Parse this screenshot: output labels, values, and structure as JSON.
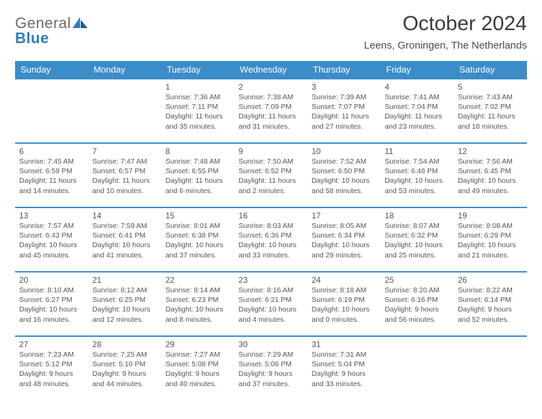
{
  "brand": {
    "word1": "General",
    "word2": "Blue",
    "accent_color": "#2f7dc0",
    "text_color": "#6a6a6a"
  },
  "title": "October 2024",
  "location": "Leens, Groningen, The Netherlands",
  "header_bg": "#3b8dca",
  "row_border_color": "#3b8dca",
  "day_headers": [
    "Sunday",
    "Monday",
    "Tuesday",
    "Wednesday",
    "Thursday",
    "Friday",
    "Saturday"
  ],
  "weeks": [
    [
      null,
      null,
      {
        "n": "1",
        "sunrise": "Sunrise: 7:36 AM",
        "sunset": "Sunset: 7:11 PM",
        "day1": "Daylight: 11 hours",
        "day2": "and 35 minutes."
      },
      {
        "n": "2",
        "sunrise": "Sunrise: 7:38 AM",
        "sunset": "Sunset: 7:09 PM",
        "day1": "Daylight: 11 hours",
        "day2": "and 31 minutes."
      },
      {
        "n": "3",
        "sunrise": "Sunrise: 7:39 AM",
        "sunset": "Sunset: 7:07 PM",
        "day1": "Daylight: 11 hours",
        "day2": "and 27 minutes."
      },
      {
        "n": "4",
        "sunrise": "Sunrise: 7:41 AM",
        "sunset": "Sunset: 7:04 PM",
        "day1": "Daylight: 11 hours",
        "day2": "and 23 minutes."
      },
      {
        "n": "5",
        "sunrise": "Sunrise: 7:43 AM",
        "sunset": "Sunset: 7:02 PM",
        "day1": "Daylight: 11 hours",
        "day2": "and 18 minutes."
      }
    ],
    [
      {
        "n": "6",
        "sunrise": "Sunrise: 7:45 AM",
        "sunset": "Sunset: 6:59 PM",
        "day1": "Daylight: 11 hours",
        "day2": "and 14 minutes."
      },
      {
        "n": "7",
        "sunrise": "Sunrise: 7:47 AM",
        "sunset": "Sunset: 6:57 PM",
        "day1": "Daylight: 11 hours",
        "day2": "and 10 minutes."
      },
      {
        "n": "8",
        "sunrise": "Sunrise: 7:48 AM",
        "sunset": "Sunset: 6:55 PM",
        "day1": "Daylight: 11 hours",
        "day2": "and 6 minutes."
      },
      {
        "n": "9",
        "sunrise": "Sunrise: 7:50 AM",
        "sunset": "Sunset: 6:52 PM",
        "day1": "Daylight: 11 hours",
        "day2": "and 2 minutes."
      },
      {
        "n": "10",
        "sunrise": "Sunrise: 7:52 AM",
        "sunset": "Sunset: 6:50 PM",
        "day1": "Daylight: 10 hours",
        "day2": "and 58 minutes."
      },
      {
        "n": "11",
        "sunrise": "Sunrise: 7:54 AM",
        "sunset": "Sunset: 6:48 PM",
        "day1": "Daylight: 10 hours",
        "day2": "and 53 minutes."
      },
      {
        "n": "12",
        "sunrise": "Sunrise: 7:56 AM",
        "sunset": "Sunset: 6:45 PM",
        "day1": "Daylight: 10 hours",
        "day2": "and 49 minutes."
      }
    ],
    [
      {
        "n": "13",
        "sunrise": "Sunrise: 7:57 AM",
        "sunset": "Sunset: 6:43 PM",
        "day1": "Daylight: 10 hours",
        "day2": "and 45 minutes."
      },
      {
        "n": "14",
        "sunrise": "Sunrise: 7:59 AM",
        "sunset": "Sunset: 6:41 PM",
        "day1": "Daylight: 10 hours",
        "day2": "and 41 minutes."
      },
      {
        "n": "15",
        "sunrise": "Sunrise: 8:01 AM",
        "sunset": "Sunset: 6:38 PM",
        "day1": "Daylight: 10 hours",
        "day2": "and 37 minutes."
      },
      {
        "n": "16",
        "sunrise": "Sunrise: 8:03 AM",
        "sunset": "Sunset: 6:36 PM",
        "day1": "Daylight: 10 hours",
        "day2": "and 33 minutes."
      },
      {
        "n": "17",
        "sunrise": "Sunrise: 8:05 AM",
        "sunset": "Sunset: 6:34 PM",
        "day1": "Daylight: 10 hours",
        "day2": "and 29 minutes."
      },
      {
        "n": "18",
        "sunrise": "Sunrise: 8:07 AM",
        "sunset": "Sunset: 6:32 PM",
        "day1": "Daylight: 10 hours",
        "day2": "and 25 minutes."
      },
      {
        "n": "19",
        "sunrise": "Sunrise: 8:08 AM",
        "sunset": "Sunset: 6:29 PM",
        "day1": "Daylight: 10 hours",
        "day2": "and 21 minutes."
      }
    ],
    [
      {
        "n": "20",
        "sunrise": "Sunrise: 8:10 AM",
        "sunset": "Sunset: 6:27 PM",
        "day1": "Daylight: 10 hours",
        "day2": "and 16 minutes."
      },
      {
        "n": "21",
        "sunrise": "Sunrise: 8:12 AM",
        "sunset": "Sunset: 6:25 PM",
        "day1": "Daylight: 10 hours",
        "day2": "and 12 minutes."
      },
      {
        "n": "22",
        "sunrise": "Sunrise: 8:14 AM",
        "sunset": "Sunset: 6:23 PM",
        "day1": "Daylight: 10 hours",
        "day2": "and 8 minutes."
      },
      {
        "n": "23",
        "sunrise": "Sunrise: 8:16 AM",
        "sunset": "Sunset: 6:21 PM",
        "day1": "Daylight: 10 hours",
        "day2": "and 4 minutes."
      },
      {
        "n": "24",
        "sunrise": "Sunrise: 8:18 AM",
        "sunset": "Sunset: 6:19 PM",
        "day1": "Daylight: 10 hours",
        "day2": "and 0 minutes."
      },
      {
        "n": "25",
        "sunrise": "Sunrise: 8:20 AM",
        "sunset": "Sunset: 6:16 PM",
        "day1": "Daylight: 9 hours",
        "day2": "and 56 minutes."
      },
      {
        "n": "26",
        "sunrise": "Sunrise: 8:22 AM",
        "sunset": "Sunset: 6:14 PM",
        "day1": "Daylight: 9 hours",
        "day2": "and 52 minutes."
      }
    ],
    [
      {
        "n": "27",
        "sunrise": "Sunrise: 7:23 AM",
        "sunset": "Sunset: 5:12 PM",
        "day1": "Daylight: 9 hours",
        "day2": "and 48 minutes."
      },
      {
        "n": "28",
        "sunrise": "Sunrise: 7:25 AM",
        "sunset": "Sunset: 5:10 PM",
        "day1": "Daylight: 9 hours",
        "day2": "and 44 minutes."
      },
      {
        "n": "29",
        "sunrise": "Sunrise: 7:27 AM",
        "sunset": "Sunset: 5:08 PM",
        "day1": "Daylight: 9 hours",
        "day2": "and 40 minutes."
      },
      {
        "n": "30",
        "sunrise": "Sunrise: 7:29 AM",
        "sunset": "Sunset: 5:06 PM",
        "day1": "Daylight: 9 hours",
        "day2": "and 37 minutes."
      },
      {
        "n": "31",
        "sunrise": "Sunrise: 7:31 AM",
        "sunset": "Sunset: 5:04 PM",
        "day1": "Daylight: 9 hours",
        "day2": "and 33 minutes."
      },
      null,
      null
    ]
  ]
}
